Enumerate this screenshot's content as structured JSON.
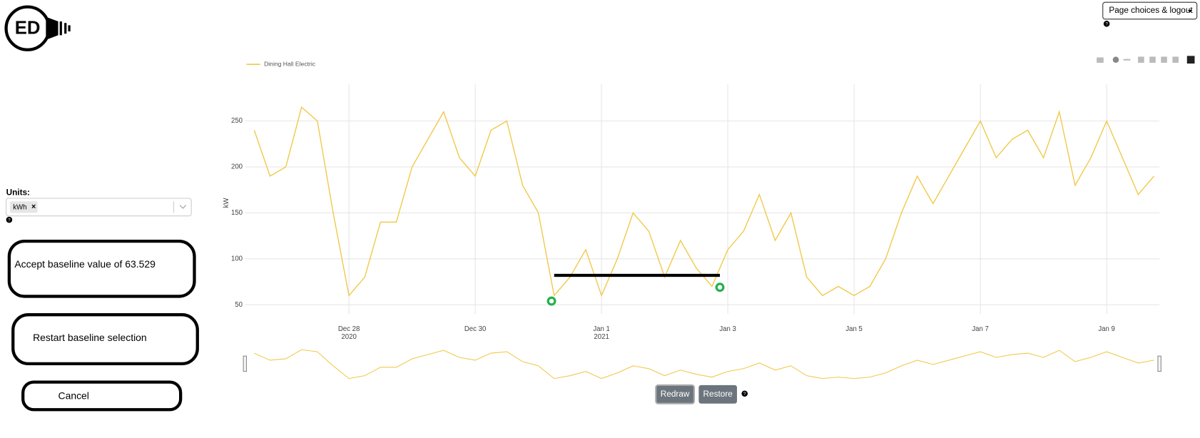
{
  "header": {
    "logo": "ED",
    "menu_button": "Page choices & logout",
    "help": "?"
  },
  "units": {
    "label": "Units:",
    "selected": "kWh",
    "remove": "×"
  },
  "buttons": {
    "accept": "Accept baseline value of 63.529",
    "restart": "Restart baseline selection",
    "cancel": "Cancel",
    "redraw": "Redraw",
    "restore": "Restore"
  },
  "chart_data": {
    "type": "line",
    "y_label": "kW",
    "series": [
      {
        "name": "Dining Hall Electric",
        "color": "#f0c94a",
        "values": [
          240,
          190,
          200,
          265,
          250,
          150,
          60,
          80,
          140,
          140,
          200,
          230,
          260,
          210,
          190,
          240,
          250,
          180,
          150,
          60,
          80,
          110,
          60,
          100,
          150,
          130,
          80,
          120,
          90,
          70,
          110,
          130,
          170,
          120,
          150,
          80,
          60,
          70,
          60,
          70,
          100,
          150,
          190,
          160,
          190,
          220,
          250,
          210,
          230,
          240,
          210,
          260,
          180,
          210,
          250,
          210,
          170,
          190
        ]
      }
    ],
    "x": [
      "2020-12-26T12:00",
      "2020-12-26T18:00",
      "2020-12-27T00:00",
      "2020-12-27T06:00",
      "2020-12-27T12:00",
      "2020-12-27T18:00",
      "2020-12-28T00:00",
      "2020-12-28T06:00",
      "2020-12-28T12:00",
      "2020-12-28T18:00",
      "2020-12-29T00:00",
      "2020-12-29T06:00",
      "2020-12-29T12:00",
      "2020-12-29T18:00",
      "2020-12-30T00:00",
      "2020-12-30T06:00",
      "2020-12-30T12:00",
      "2020-12-30T18:00",
      "2020-12-31T00:00",
      "2020-12-31T06:00",
      "2020-12-31T12:00",
      "2020-12-31T18:00",
      "2021-01-01T00:00",
      "2021-01-01T06:00",
      "2021-01-01T12:00",
      "2021-01-01T18:00",
      "2021-01-02T00:00",
      "2021-01-02T06:00",
      "2021-01-02T12:00",
      "2021-01-02T18:00",
      "2021-01-03T00:00",
      "2021-01-03T06:00",
      "2021-01-03T12:00",
      "2021-01-03T18:00",
      "2021-01-04T00:00",
      "2021-01-04T06:00",
      "2021-01-04T12:00",
      "2021-01-04T18:00",
      "2021-01-05T00:00",
      "2021-01-05T06:00",
      "2021-01-05T12:00",
      "2021-01-05T18:00",
      "2021-01-06T00:00",
      "2021-01-06T06:00",
      "2021-01-06T12:00",
      "2021-01-06T18:00",
      "2021-01-07T00:00",
      "2021-01-07T06:00",
      "2021-01-07T12:00",
      "2021-01-07T18:00",
      "2021-01-08T00:00",
      "2021-01-08T06:00",
      "2021-01-08T12:00",
      "2021-01-08T18:00",
      "2021-01-09T00:00",
      "2021-01-09T06:00",
      "2021-01-09T12:00",
      "2021-01-09T18:00"
    ],
    "xlim": [
      "2020-12-26T08:27",
      "2021-01-09T20:04"
    ],
    "xticks": [
      {
        "value": "2020-12-28T00:00",
        "label": "Dec 28",
        "sublabel": "2020"
      },
      {
        "value": "2020-12-30T00:00",
        "label": "Dec 30"
      },
      {
        "value": "2021-01-01T00:00",
        "label": "Jan 1",
        "sublabel": "2021"
      },
      {
        "value": "2021-01-03T00:00",
        "label": "Jan 3"
      },
      {
        "value": "2021-01-05T00:00",
        "label": "Jan 5"
      },
      {
        "value": "2021-01-07T00:00",
        "label": "Jan 7"
      },
      {
        "value": "2021-01-09T00:00",
        "label": "Jan 9"
      }
    ],
    "ylim": [
      40,
      290
    ],
    "yticks": [
      50,
      100,
      150,
      200,
      250
    ],
    "grid": true,
    "baseline_line": {
      "start": "2020-12-31T06:00",
      "end": "2021-01-02T21:00",
      "value": 82,
      "color": "#000000"
    },
    "selected_points": {
      "color": "#22b14c",
      "x": [
        "2020-12-31T05:00",
        "2021-01-02T21:00"
      ],
      "values": [
        54,
        69
      ]
    }
  }
}
